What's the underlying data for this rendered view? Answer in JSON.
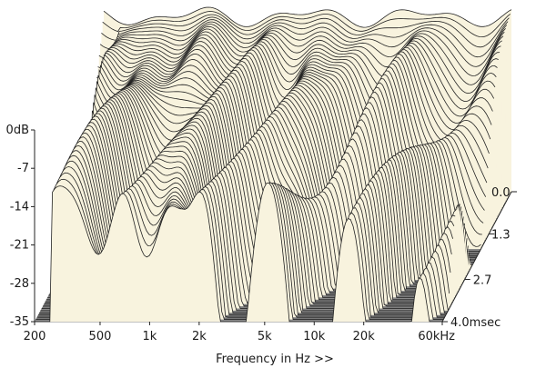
{
  "chart_data": {
    "type": "waterfall",
    "xlabel": "Frequency in Hz >>",
    "x_scale": "log",
    "xlim": [
      200,
      60000
    ],
    "x_ticks": [
      {
        "value": 200,
        "label": "200"
      },
      {
        "value": 500,
        "label": "500"
      },
      {
        "value": 1000,
        "label": "1k"
      },
      {
        "value": 2000,
        "label": "2k"
      },
      {
        "value": 5000,
        "label": "5k"
      },
      {
        "value": 10000,
        "label": "10k"
      },
      {
        "value": 20000,
        "label": "20k"
      },
      {
        "value": 60000,
        "label": "60kHz"
      }
    ],
    "ylim": [
      -35,
      0
    ],
    "y_ticks": [
      {
        "value": 0,
        "label": "0dB"
      },
      {
        "value": -7,
        "label": "-7"
      },
      {
        "value": -14,
        "label": "-14"
      },
      {
        "value": -21,
        "label": "-21"
      },
      {
        "value": -28,
        "label": "-28"
      },
      {
        "value": -35,
        "label": "-35"
      }
    ],
    "time_ticks": [
      {
        "value": 0.0,
        "label": "0.0"
      },
      {
        "value": 1.3,
        "label": "1.3"
      },
      {
        "value": 2.7,
        "label": "2.7"
      },
      {
        "value": 4.0,
        "label": "4.0msec"
      }
    ],
    "tlim": [
      0,
      4.0
    ],
    "colors": {
      "surface": "#f8f3de",
      "contour": "#222222",
      "floor": "#8a8a8a",
      "floor_line": "#5a5a5a",
      "axis": "#222222"
    }
  }
}
